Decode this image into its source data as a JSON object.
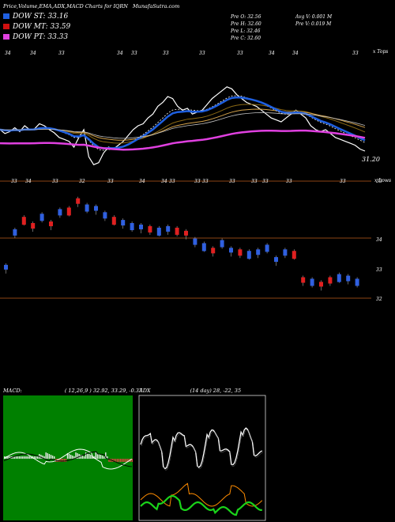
{
  "header": {
    "title": "Price,Volume,EMA,ADX,MACD Charts for IQRN",
    "site": "MunafaSutra.com"
  },
  "legend": [
    {
      "label": "DOW ST: 33.16",
      "color": "#1e5fe0"
    },
    {
      "label": "DOW MT: 33.59",
      "color": "#d01010"
    },
    {
      "label": "DOW PT: 33.33",
      "color": "#e040e0"
    }
  ],
  "ohlc": {
    "open": "Pre   O: 32.56",
    "high": "Pre   H: 32.60",
    "low": "Pre   L: 32.46",
    "close": "Pre   C: 32.60"
  },
  "volume_info": {
    "avg": "Avg V: 0.001 M",
    "pre": "Pre   V: 0.019 M"
  },
  "top_labels": [
    "34",
    "34",
    "33",
    "34",
    "33",
    "33",
    "33",
    "33",
    "34",
    "34",
    "33"
  ],
  "top_corner": "x Tops",
  "mid_labels": [
    "33",
    "34",
    "33",
    "32",
    "33",
    "34",
    "34",
    "33",
    "33",
    "33",
    "33",
    "33",
    "33",
    "33",
    "33"
  ],
  "mid_corner": "x Lows",
  "price_panel": {
    "last_label": "31.20",
    "line_label": "33",
    "price_series": [
      33.3,
      33.2,
      33.25,
      33.35,
      33.25,
      33.4,
      33.3,
      33.32,
      33.45,
      33.4,
      33.3,
      33.22,
      33.1,
      33.05,
      33.0,
      32.85,
      33.1,
      33.3,
      32.6,
      32.4,
      32.45,
      32.7,
      32.85,
      32.8,
      32.9,
      33.0,
      33.15,
      33.3,
      33.4,
      33.45,
      33.6,
      33.7,
      33.9,
      34.0,
      34.15,
      34.1,
      33.9,
      33.8,
      33.85,
      33.7,
      33.75,
      33.8,
      33.95,
      34.1,
      34.2,
      34.3,
      34.4,
      34.35,
      34.2,
      34.1,
      34.0,
      33.95,
      33.9,
      33.8,
      33.7,
      33.6,
      33.55,
      33.5,
      33.6,
      33.7,
      33.8,
      33.7,
      33.6,
      33.4,
      33.3,
      33.25,
      33.3,
      33.2,
      33.1,
      33.05,
      33.0,
      32.95,
      32.9,
      32.8,
      32.75
    ]
  },
  "candle_panel": {
    "levels": [
      "34",
      "33",
      "32"
    ],
    "candles": [
      {
        "v": 33.0,
        "c": "#3060e0"
      },
      {
        "v": 34.15,
        "c": "#3060e0"
      },
      {
        "v": 34.55,
        "c": "#e02020"
      },
      {
        "v": 34.35,
        "c": "#e02020"
      },
      {
        "v": 34.65,
        "c": "#3060e0"
      },
      {
        "v": 34.4,
        "c": "#e02020"
      },
      {
        "v": 34.8,
        "c": "#3060e0"
      },
      {
        "v": 34.85,
        "c": "#e02020"
      },
      {
        "v": 35.15,
        "c": "#e02020"
      },
      {
        "v": 34.95,
        "c": "#3060e0"
      },
      {
        "v": 34.9,
        "c": "#3060e0"
      },
      {
        "v": 34.7,
        "c": "#3060e0"
      },
      {
        "v": 34.55,
        "c": "#e02020"
      },
      {
        "v": 34.45,
        "c": "#3060e0"
      },
      {
        "v": 34.35,
        "c": "#3060e0"
      },
      {
        "v": 34.3,
        "c": "#3060e0"
      },
      {
        "v": 34.25,
        "c": "#e02020"
      },
      {
        "v": 34.2,
        "c": "#3060e0"
      },
      {
        "v": 34.25,
        "c": "#3060e0"
      },
      {
        "v": 34.2,
        "c": "#e02020"
      },
      {
        "v": 34.1,
        "c": "#e02020"
      },
      {
        "v": 33.85,
        "c": "#3060e0"
      },
      {
        "v": 33.7,
        "c": "#3060e0"
      },
      {
        "v": 33.55,
        "c": "#e02020"
      },
      {
        "v": 33.8,
        "c": "#3060e0"
      },
      {
        "v": 33.55,
        "c": "#3060e0"
      },
      {
        "v": 33.5,
        "c": "#e02020"
      },
      {
        "v": 33.45,
        "c": "#3060e0"
      },
      {
        "v": 33.5,
        "c": "#3060e0"
      },
      {
        "v": 33.65,
        "c": "#3060e0"
      },
      {
        "v": 33.25,
        "c": "#3060e0"
      },
      {
        "v": 33.5,
        "c": "#3060e0"
      },
      {
        "v": 33.45,
        "c": "#e02020"
      },
      {
        "v": 32.6,
        "c": "#e02020"
      },
      {
        "v": 32.55,
        "c": "#3060e0"
      },
      {
        "v": 32.45,
        "c": "#e02020"
      },
      {
        "v": 32.6,
        "c": "#e02020"
      },
      {
        "v": 32.7,
        "c": "#3060e0"
      },
      {
        "v": 32.65,
        "c": "#3060e0"
      },
      {
        "v": 32.55,
        "c": "#3060e0"
      }
    ]
  },
  "macd": {
    "label": "MACD:",
    "params": "( 12,26,9 ) 32.92,  33.29,  -0.37"
  },
  "adx": {
    "label": "ADX",
    "params": "(14  day) 28,  -22,  35"
  },
  "colors": {
    "ema_short": "#1e5fe0",
    "ema_mid": "#d01010",
    "ema_long": "#e040e0",
    "grid": "#8b4513",
    "macd_bg": "#008000"
  }
}
